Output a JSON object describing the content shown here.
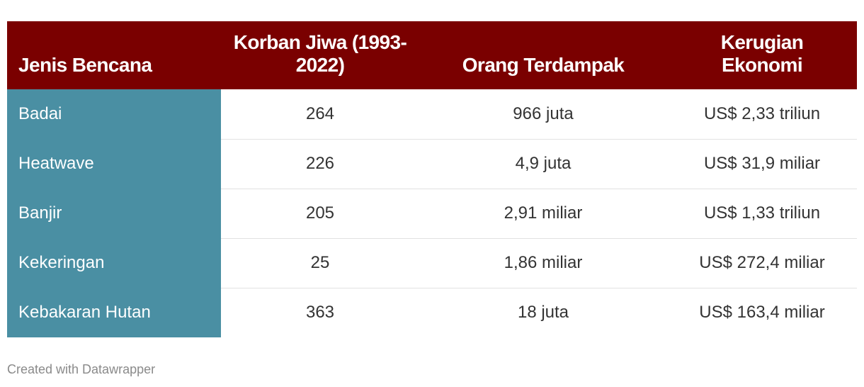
{
  "table": {
    "header": [
      "Jenis Bencana",
      "Korban Jiwa (1993-2022)",
      "Orang Terdampak",
      "Kerugian Ekonomi"
    ],
    "rows": [
      [
        "Badai",
        "264",
        "966 juta",
        "US$ 2,33 triliun"
      ],
      [
        "Heatwave",
        "226",
        "4,9 juta",
        "US$ 31,9 miliar"
      ],
      [
        "Banjir",
        "205",
        "2,91 miliar",
        "US$ 1,33 triliun"
      ],
      [
        "Kekeringan",
        "25",
        "1,86 miliar",
        "US$ 272,4 miliar"
      ],
      [
        "Kebakaran Hutan",
        "363",
        "18 juta",
        "US$ 163,4 miliar"
      ]
    ]
  },
  "footer": "Created with Datawrapper"
}
